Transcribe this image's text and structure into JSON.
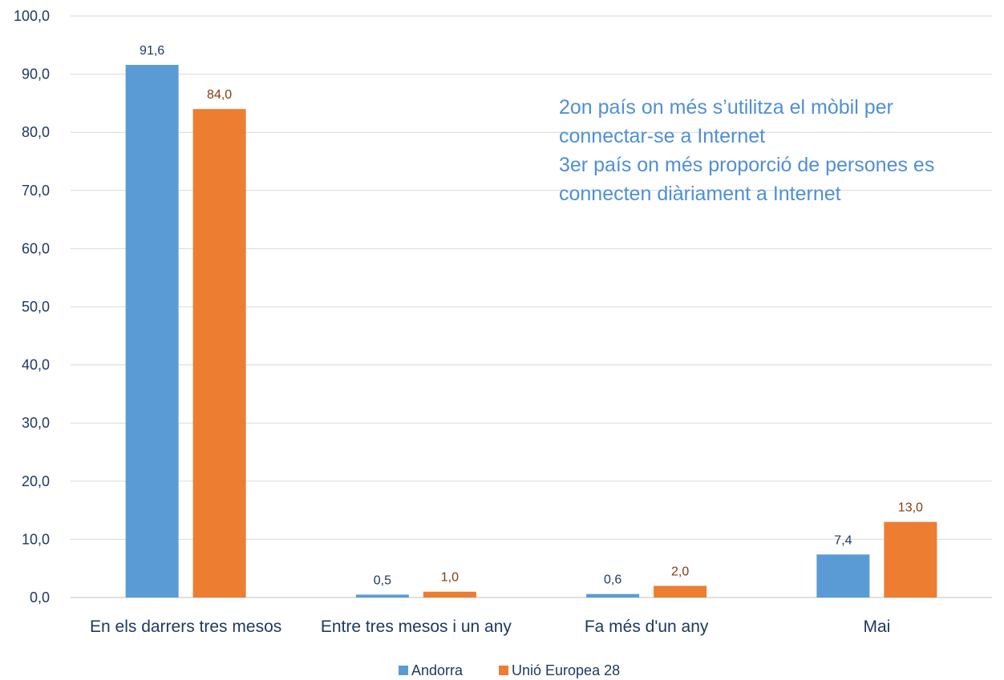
{
  "chart_data": {
    "type": "bar",
    "categories": [
      "En els darrers tres mesos",
      "Entre tres mesos i un any",
      "Fa més d'un any",
      "Mai"
    ],
    "series": [
      {
        "name": "Andorra",
        "values": [
          91.6,
          0.5,
          0.6,
          7.4
        ],
        "color": "#5b9bd5"
      },
      {
        "name": "Unió Europea 28",
        "values": [
          84.0,
          1.0,
          2.0,
          13.0
        ],
        "color": "#ed7d31"
      }
    ],
    "value_labels": [
      [
        "91,6",
        "0,5",
        "0,6",
        "7,4"
      ],
      [
        "84,0",
        "1,0",
        "2,0",
        "13,0"
      ]
    ],
    "ylim": [
      0,
      100
    ],
    "yticks": [
      "0,0",
      "10,0",
      "20,0",
      "30,0",
      "40,0",
      "50,0",
      "60,0",
      "70,0",
      "80,0",
      "90,0",
      "100,0"
    ],
    "grid": true,
    "legend_position": "bottom",
    "annotations": [
      "2on país on més s’utilitza el mòbil per",
      "connectar-se a Internet",
      "3er país on més proporció de persones es",
      "connecten diàriament a Internet"
    ]
  }
}
